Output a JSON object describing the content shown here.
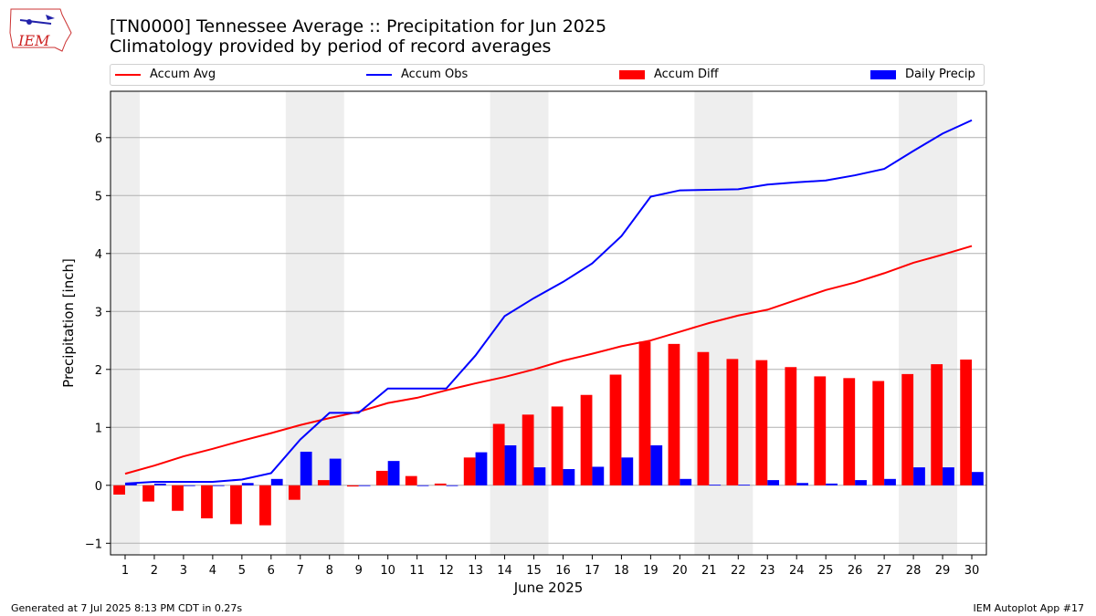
{
  "header": {
    "title_line1": "[TN0000] Tennessee Average :: Precipitation for Jun 2025",
    "title_line2": "Climatology provided by period of record averages",
    "logo_text": "IEM"
  },
  "footer": {
    "left": "Generated at 7 Jul 2025 8:13 PM CDT in 0.27s",
    "right": "IEM Autoplot App #17"
  },
  "colors": {
    "avg": "#ff0000",
    "obs": "#0000ff",
    "diff": "#ff0000",
    "daily": "#0000ff",
    "weekend_shade": "#eeeeee",
    "grid": "#b0b0b0"
  },
  "chart_data": {
    "type": "bar",
    "xlabel": "June 2025",
    "ylabel": "Precipitation [inch]",
    "ylim": [
      -1.2,
      6.8
    ],
    "yticks": [
      -1,
      0,
      1,
      2,
      3,
      4,
      5,
      6
    ],
    "grid": "horizontal",
    "legend_position": "top",
    "x": [
      1,
      2,
      3,
      4,
      5,
      6,
      7,
      8,
      9,
      10,
      11,
      12,
      13,
      14,
      15,
      16,
      17,
      18,
      19,
      20,
      21,
      22,
      23,
      24,
      25,
      26,
      27,
      28,
      29,
      30
    ],
    "weekend_spans": [
      [
        1,
        1
      ],
      [
        7,
        8
      ],
      [
        14,
        15
      ],
      [
        21,
        22
      ],
      [
        28,
        29
      ]
    ],
    "series": [
      {
        "name": "Accum Avg",
        "kind": "line",
        "values": [
          0.2,
          0.34,
          0.5,
          0.63,
          0.77,
          0.9,
          1.04,
          1.16,
          1.27,
          1.42,
          1.51,
          1.64,
          1.76,
          1.87,
          2.0,
          2.15,
          2.27,
          2.4,
          2.5,
          2.65,
          2.8,
          2.93,
          3.03,
          3.2,
          3.37,
          3.5,
          3.66,
          3.84,
          3.98,
          4.13
        ]
      },
      {
        "name": "Accum Obs",
        "kind": "line",
        "values": [
          0.03,
          0.06,
          0.06,
          0.06,
          0.1,
          0.21,
          0.79,
          1.25,
          1.25,
          1.67,
          1.67,
          1.67,
          2.24,
          2.92,
          3.23,
          3.51,
          3.83,
          4.3,
          4.98,
          5.09,
          5.1,
          5.11,
          5.19,
          5.23,
          5.26,
          5.35,
          5.46,
          5.77,
          6.07,
          6.3
        ]
      },
      {
        "name": "Accum Diff",
        "kind": "bar",
        "values": [
          -0.16,
          -0.28,
          -0.44,
          -0.57,
          -0.67,
          -0.69,
          -0.25,
          0.09,
          -0.02,
          0.25,
          0.16,
          0.03,
          0.48,
          1.06,
          1.22,
          1.36,
          1.56,
          1.91,
          2.48,
          2.44,
          2.3,
          2.18,
          2.16,
          2.04,
          1.88,
          1.85,
          1.8,
          1.92,
          2.09,
          2.17
        ]
      },
      {
        "name": "Daily Precip",
        "kind": "bar",
        "values": [
          0.03,
          0.03,
          0.0,
          0.0,
          0.04,
          0.11,
          0.58,
          0.46,
          0.0,
          0.42,
          0.0,
          0.0,
          0.57,
          0.69,
          0.31,
          0.28,
          0.32,
          0.48,
          0.69,
          0.11,
          0.01,
          0.01,
          0.09,
          0.04,
          0.03,
          0.09,
          0.11,
          0.31,
          0.31,
          0.23
        ]
      }
    ]
  }
}
